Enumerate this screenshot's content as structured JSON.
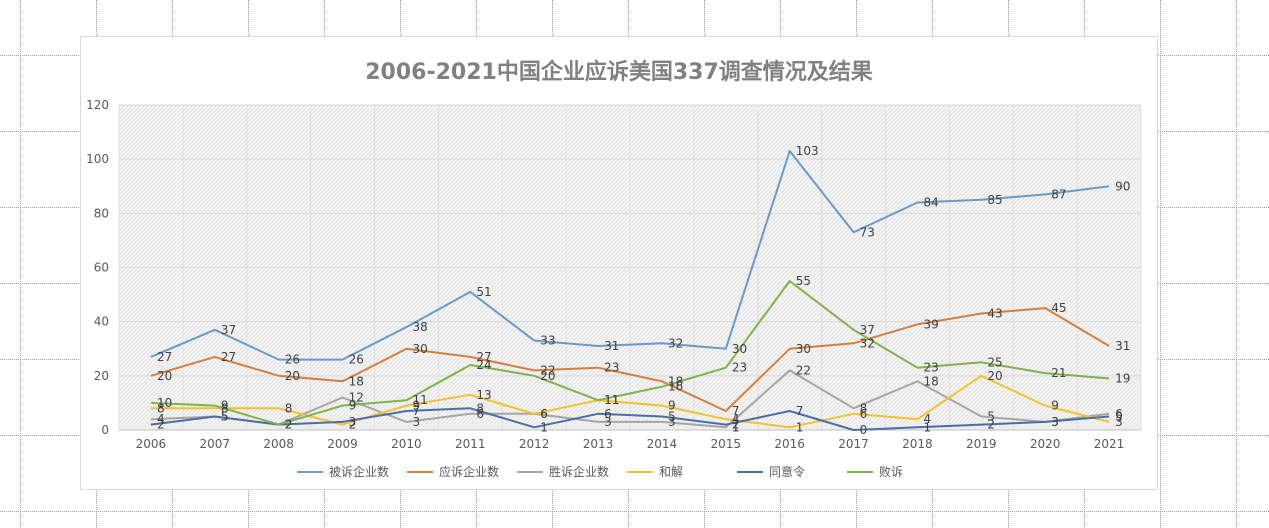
{
  "chart_data": {
    "type": "line",
    "title": "2006-2021中国企业应诉美国337调查情况及结果",
    "categories": [
      "2006",
      "2007",
      "2008",
      "2009",
      "2010",
      "2011",
      "2012",
      "2013",
      "2014",
      "2015",
      "2016",
      "2017",
      "2018",
      "2019",
      "2020",
      "2021"
    ],
    "ylim": [
      0,
      120
    ],
    "yticks": [
      "0",
      "20",
      "40",
      "60",
      "80",
      "100",
      "120"
    ],
    "grid": true,
    "legend_position": "bottom",
    "series": [
      {
        "name": "被诉企业数",
        "color": "#6a9ac7",
        "values": [
          27,
          37,
          26,
          26,
          38,
          51,
          33,
          31,
          32,
          30,
          103,
          73,
          84,
          85,
          87,
          90
        ]
      },
      {
        "name": "应诉企业数",
        "color": "#d47f3f",
        "values": [
          20,
          27,
          20,
          18,
          30,
          27,
          22,
          23,
          18,
          7,
          30,
          32,
          39,
          43,
          45,
          31
        ]
      },
      {
        "name": "胜诉企业数",
        "color": "#a5a5a5",
        "values": [
          4,
          5,
          2,
          12,
          3,
          6,
          6,
          3,
          3,
          1,
          22,
          8,
          18,
          5,
          3,
          6
        ]
      },
      {
        "name": "和解",
        "color": "#f2c12e",
        "values": [
          8,
          8,
          8,
          2,
          9,
          13,
          6,
          11,
          9,
          4,
          1,
          6,
          4,
          20,
          9,
          3
        ]
      },
      {
        "name": "同意令",
        "color": "#4a6fa5",
        "values": [
          2,
          5,
          2,
          3,
          7,
          8,
          1,
          6,
          5,
          2,
          7,
          0,
          1,
          2,
          3,
          5
        ]
      },
      {
        "name": "败诉",
        "color": "#7fb24a",
        "values": [
          10,
          9,
          2,
          9,
          11,
          24,
          20,
          11,
          16,
          23,
          55,
          37,
          23,
          25,
          21,
          19
        ]
      }
    ]
  }
}
